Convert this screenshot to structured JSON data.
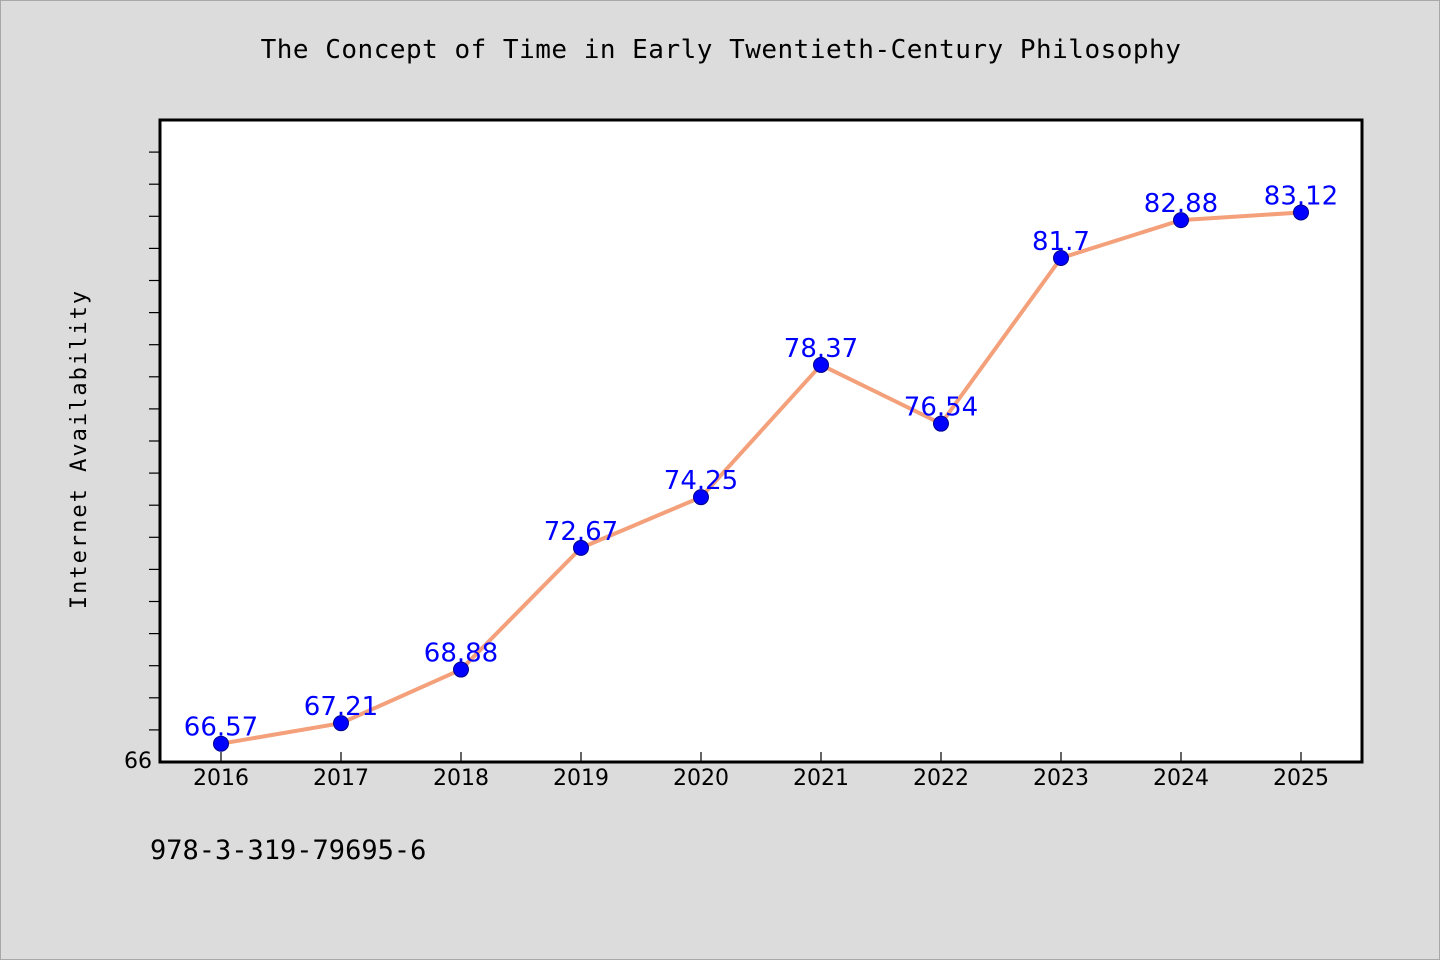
{
  "chart_data": {
    "type": "line",
    "title": "The Concept of Time in Early Twentieth-Century Philosophy",
    "xlabel": "",
    "ylabel": "Internet Availability",
    "categories": [
      "2016",
      "2017",
      "2018",
      "2019",
      "2020",
      "2021",
      "2022",
      "2023",
      "2024",
      "2025"
    ],
    "series": [
      {
        "values": [
          66.57,
          67.21,
          68.88,
          72.67,
          74.25,
          78.37,
          76.54,
          81.7,
          82.88,
          83.12
        ],
        "data_labels": [
          "66.57",
          "67.21",
          "68.88",
          "72.67",
          "74.25",
          "78.37",
          "76.54",
          "81.7",
          "82.88",
          "83.12"
        ],
        "line_color": "#f4a07a",
        "marker_color": "#0000ff"
      }
    ],
    "ylim": [
      66,
      86
    ],
    "y_tick_labels": [
      "66"
    ],
    "y_minor_tick_step": 1,
    "grid": false,
    "legend": "none"
  },
  "caption": "978-3-319-79695-6",
  "colors": {
    "background": "#dcdcdc",
    "plot_area": "#ffffff",
    "line": "#f4a07a",
    "marker": "#0000ff",
    "data_label": "#0000ff"
  }
}
